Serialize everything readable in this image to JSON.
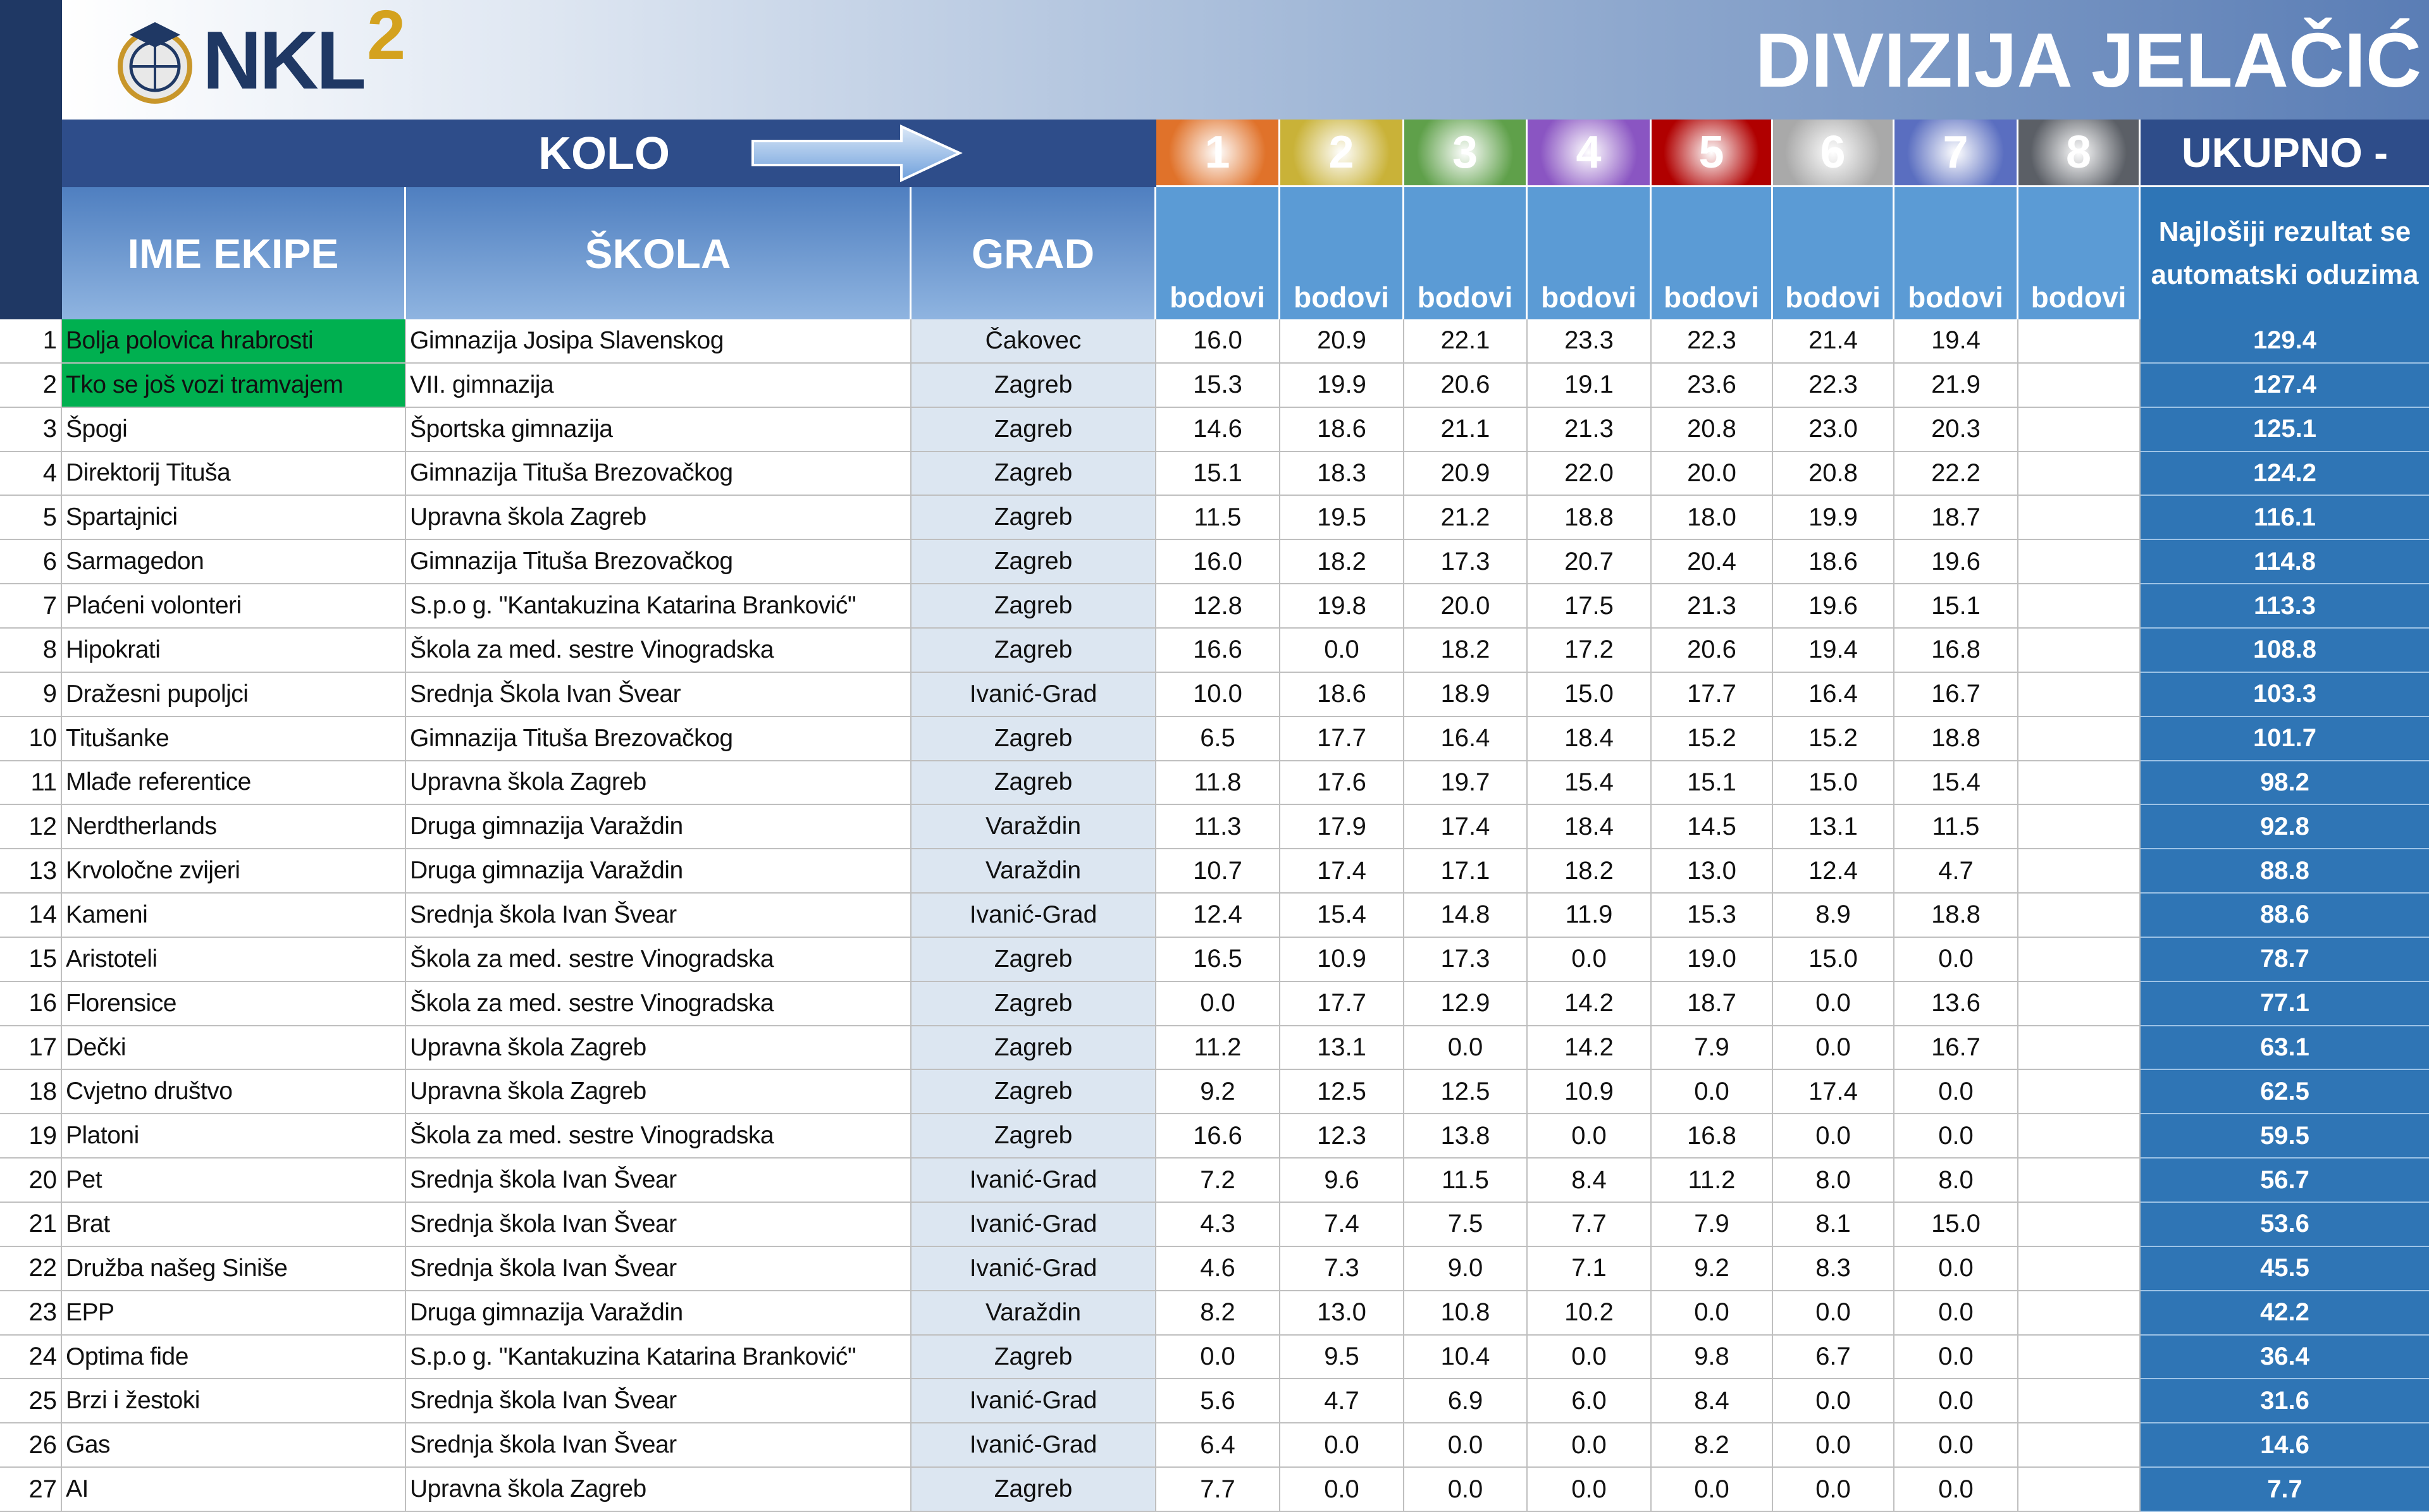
{
  "header": {
    "logo": "NKL",
    "logo_sup": "2",
    "title": "DIVIZIJA JELAČIĆ"
  },
  "table": {
    "kolo": "KOLO",
    "rounds": [
      1,
      2,
      3,
      4,
      5,
      6,
      7,
      8
    ],
    "total_header": "UKUPNO -",
    "columns": [
      "IME EKIPE",
      "ŠKOLA",
      "GRAD"
    ],
    "points_label": [
      "bodovi",
      "bodovi",
      "bodovi",
      "bodovi",
      "bodovi",
      "bodovi",
      "bodovi",
      "bodovi"
    ],
    "total_note": "Najlošiji rezultat se automatski oduzima",
    "rows": [
      [
        1,
        "Bolja polovica hrabrosti",
        "Gimnazija Josipa Slavenskog",
        "Čakovec",
        "16.0",
        "20.9",
        "22.1",
        "23.3",
        "22.3",
        "21.4",
        "19.4",
        "129.4"
      ],
      [
        2,
        "Tko se još vozi tramvajem",
        "VII. gimnazija",
        "Zagreb",
        "15.3",
        "19.9",
        "20.6",
        "19.1",
        "23.6",
        "22.3",
        "21.9",
        "127.4"
      ],
      [
        3,
        "Špogi",
        "Športska gimnazija",
        "Zagreb",
        "14.6",
        "18.6",
        "21.1",
        "21.3",
        "20.8",
        "23.0",
        "20.3",
        "125.1"
      ],
      [
        4,
        "Direktorij Tituša",
        "Gimnazija Tituša Brezovačkog",
        "Zagreb",
        "15.1",
        "18.3",
        "20.9",
        "22.0",
        "20.0",
        "20.8",
        "22.2",
        "124.2"
      ],
      [
        5,
        "Spartajnici",
        "Upravna škola Zagreb",
        "Zagreb",
        "11.5",
        "19.5",
        "21.2",
        "18.8",
        "18.0",
        "19.9",
        "18.7",
        "116.1"
      ],
      [
        6,
        "Sarmagedon",
        "Gimnazija Tituša Brezovačkog",
        "Zagreb",
        "16.0",
        "18.2",
        "17.3",
        "20.7",
        "20.4",
        "18.6",
        "19.6",
        "114.8"
      ],
      [
        7,
        "Plaćeni volonteri",
        "S.p.o g. \"Kantakuzina Katarina Branković\"",
        "Zagreb",
        "12.8",
        "19.8",
        "20.0",
        "17.5",
        "21.3",
        "19.6",
        "15.1",
        "113.3"
      ],
      [
        8,
        "Hipokrati",
        "Škola za med. sestre Vinogradska",
        "Zagreb",
        "16.6",
        "0.0",
        "18.2",
        "17.2",
        "20.6",
        "19.4",
        "16.8",
        "108.8"
      ],
      [
        9,
        "Dražesni pupoljci",
        "Srednja Škola Ivan Švear",
        "Ivanić-Grad",
        "10.0",
        "18.6",
        "18.9",
        "15.0",
        "17.7",
        "16.4",
        "16.7",
        "103.3"
      ],
      [
        10,
        "Titušanke",
        "Gimnazija Tituša Brezovačkog",
        "Zagreb",
        "6.5",
        "17.7",
        "16.4",
        "18.4",
        "15.2",
        "15.2",
        "18.8",
        "101.7"
      ],
      [
        11,
        "Mlađe referentice",
        "Upravna škola Zagreb",
        "Zagreb",
        "11.8",
        "17.6",
        "19.7",
        "15.4",
        "15.1",
        "15.0",
        "15.4",
        "98.2"
      ],
      [
        12,
        "Nerdtherlands",
        "Druga gimnazija Varaždin",
        "Varaždin",
        "11.3",
        "17.9",
        "17.4",
        "18.4",
        "14.5",
        "13.1",
        "11.5",
        "92.8"
      ],
      [
        13,
        "Krvoločne zvijeri",
        "Druga gimnazija Varaždin",
        "Varaždin",
        "10.7",
        "17.4",
        "17.1",
        "18.2",
        "13.0",
        "12.4",
        "4.7",
        "88.8"
      ],
      [
        14,
        "Kameni",
        "Srednja škola Ivan Švear",
        "Ivanić-Grad",
        "12.4",
        "15.4",
        "14.8",
        "11.9",
        "15.3",
        "8.9",
        "18.8",
        "88.6"
      ],
      [
        15,
        "Aristoteli",
        "Škola za med. sestre Vinogradska",
        "Zagreb",
        "16.5",
        "10.9",
        "17.3",
        "0.0",
        "19.0",
        "15.0",
        "0.0",
        "78.7"
      ],
      [
        16,
        "Florensice",
        "Škola za med. sestre Vinogradska",
        "Zagreb",
        "0.0",
        "17.7",
        "12.9",
        "14.2",
        "18.7",
        "0.0",
        "13.6",
        "77.1"
      ],
      [
        17,
        "Dečki",
        "Upravna škola Zagreb",
        "Zagreb",
        "11.2",
        "13.1",
        "0.0",
        "14.2",
        "7.9",
        "0.0",
        "16.7",
        "63.1"
      ],
      [
        18,
        "Cvjetno društvo",
        "Upravna škola Zagreb",
        "Zagreb",
        "9.2",
        "12.5",
        "12.5",
        "10.9",
        "0.0",
        "17.4",
        "0.0",
        "62.5"
      ],
      [
        19,
        "Platoni",
        "Škola za med. sestre Vinogradska",
        "Zagreb",
        "16.6",
        "12.3",
        "13.8",
        "0.0",
        "16.8",
        "0.0",
        "0.0",
        "59.5"
      ],
      [
        20,
        "Pet",
        "Srednja škola Ivan Švear",
        "Ivanić-Grad",
        "7.2",
        "9.6",
        "11.5",
        "8.4",
        "11.2",
        "8.0",
        "8.0",
        "56.7"
      ],
      [
        21,
        "Brat",
        "Srednja škola Ivan Švear",
        "Ivanić-Grad",
        "4.3",
        "7.4",
        "7.5",
        "7.7",
        "7.9",
        "8.1",
        "15.0",
        "53.6"
      ],
      [
        22,
        "Družba našeg Siniše",
        "Srednja škola Ivan Švear",
        "Ivanić-Grad",
        "4.6",
        "7.3",
        "9.0",
        "7.1",
        "9.2",
        "8.3",
        "0.0",
        "45.5"
      ],
      [
        23,
        "EPP",
        "Druga gimnazija Varaždin",
        "Varaždin",
        "8.2",
        "13.0",
        "10.8",
        "10.2",
        "0.0",
        "0.0",
        "0.0",
        "42.2"
      ],
      [
        24,
        "Optima fide",
        "S.p.o g. \"Kantakuzina Katarina Branković\"",
        "Zagreb",
        "0.0",
        "9.5",
        "10.4",
        "0.0",
        "9.8",
        "6.7",
        "0.0",
        "36.4"
      ],
      [
        25,
        "Brzi i žestoki",
        "Srednja škola Ivan Švear",
        "Ivanić-Grad",
        "5.6",
        "4.7",
        "6.9",
        "6.0",
        "8.4",
        "0.0",
        "0.0",
        "31.6"
      ],
      [
        26,
        "Gas",
        "Srednja škola Ivan Švear",
        "Ivanić-Grad",
        "6.4",
        "0.0",
        "0.0",
        "0.0",
        "8.2",
        "0.0",
        "0.0",
        "14.6"
      ],
      [
        27,
        "AI",
        "Upravna škola Zagreb",
        "Zagreb",
        "7.7",
        "0.0",
        "0.0",
        "0.0",
        "0.0",
        "0.0",
        "0.0",
        "7.7"
      ]
    ]
  }
}
